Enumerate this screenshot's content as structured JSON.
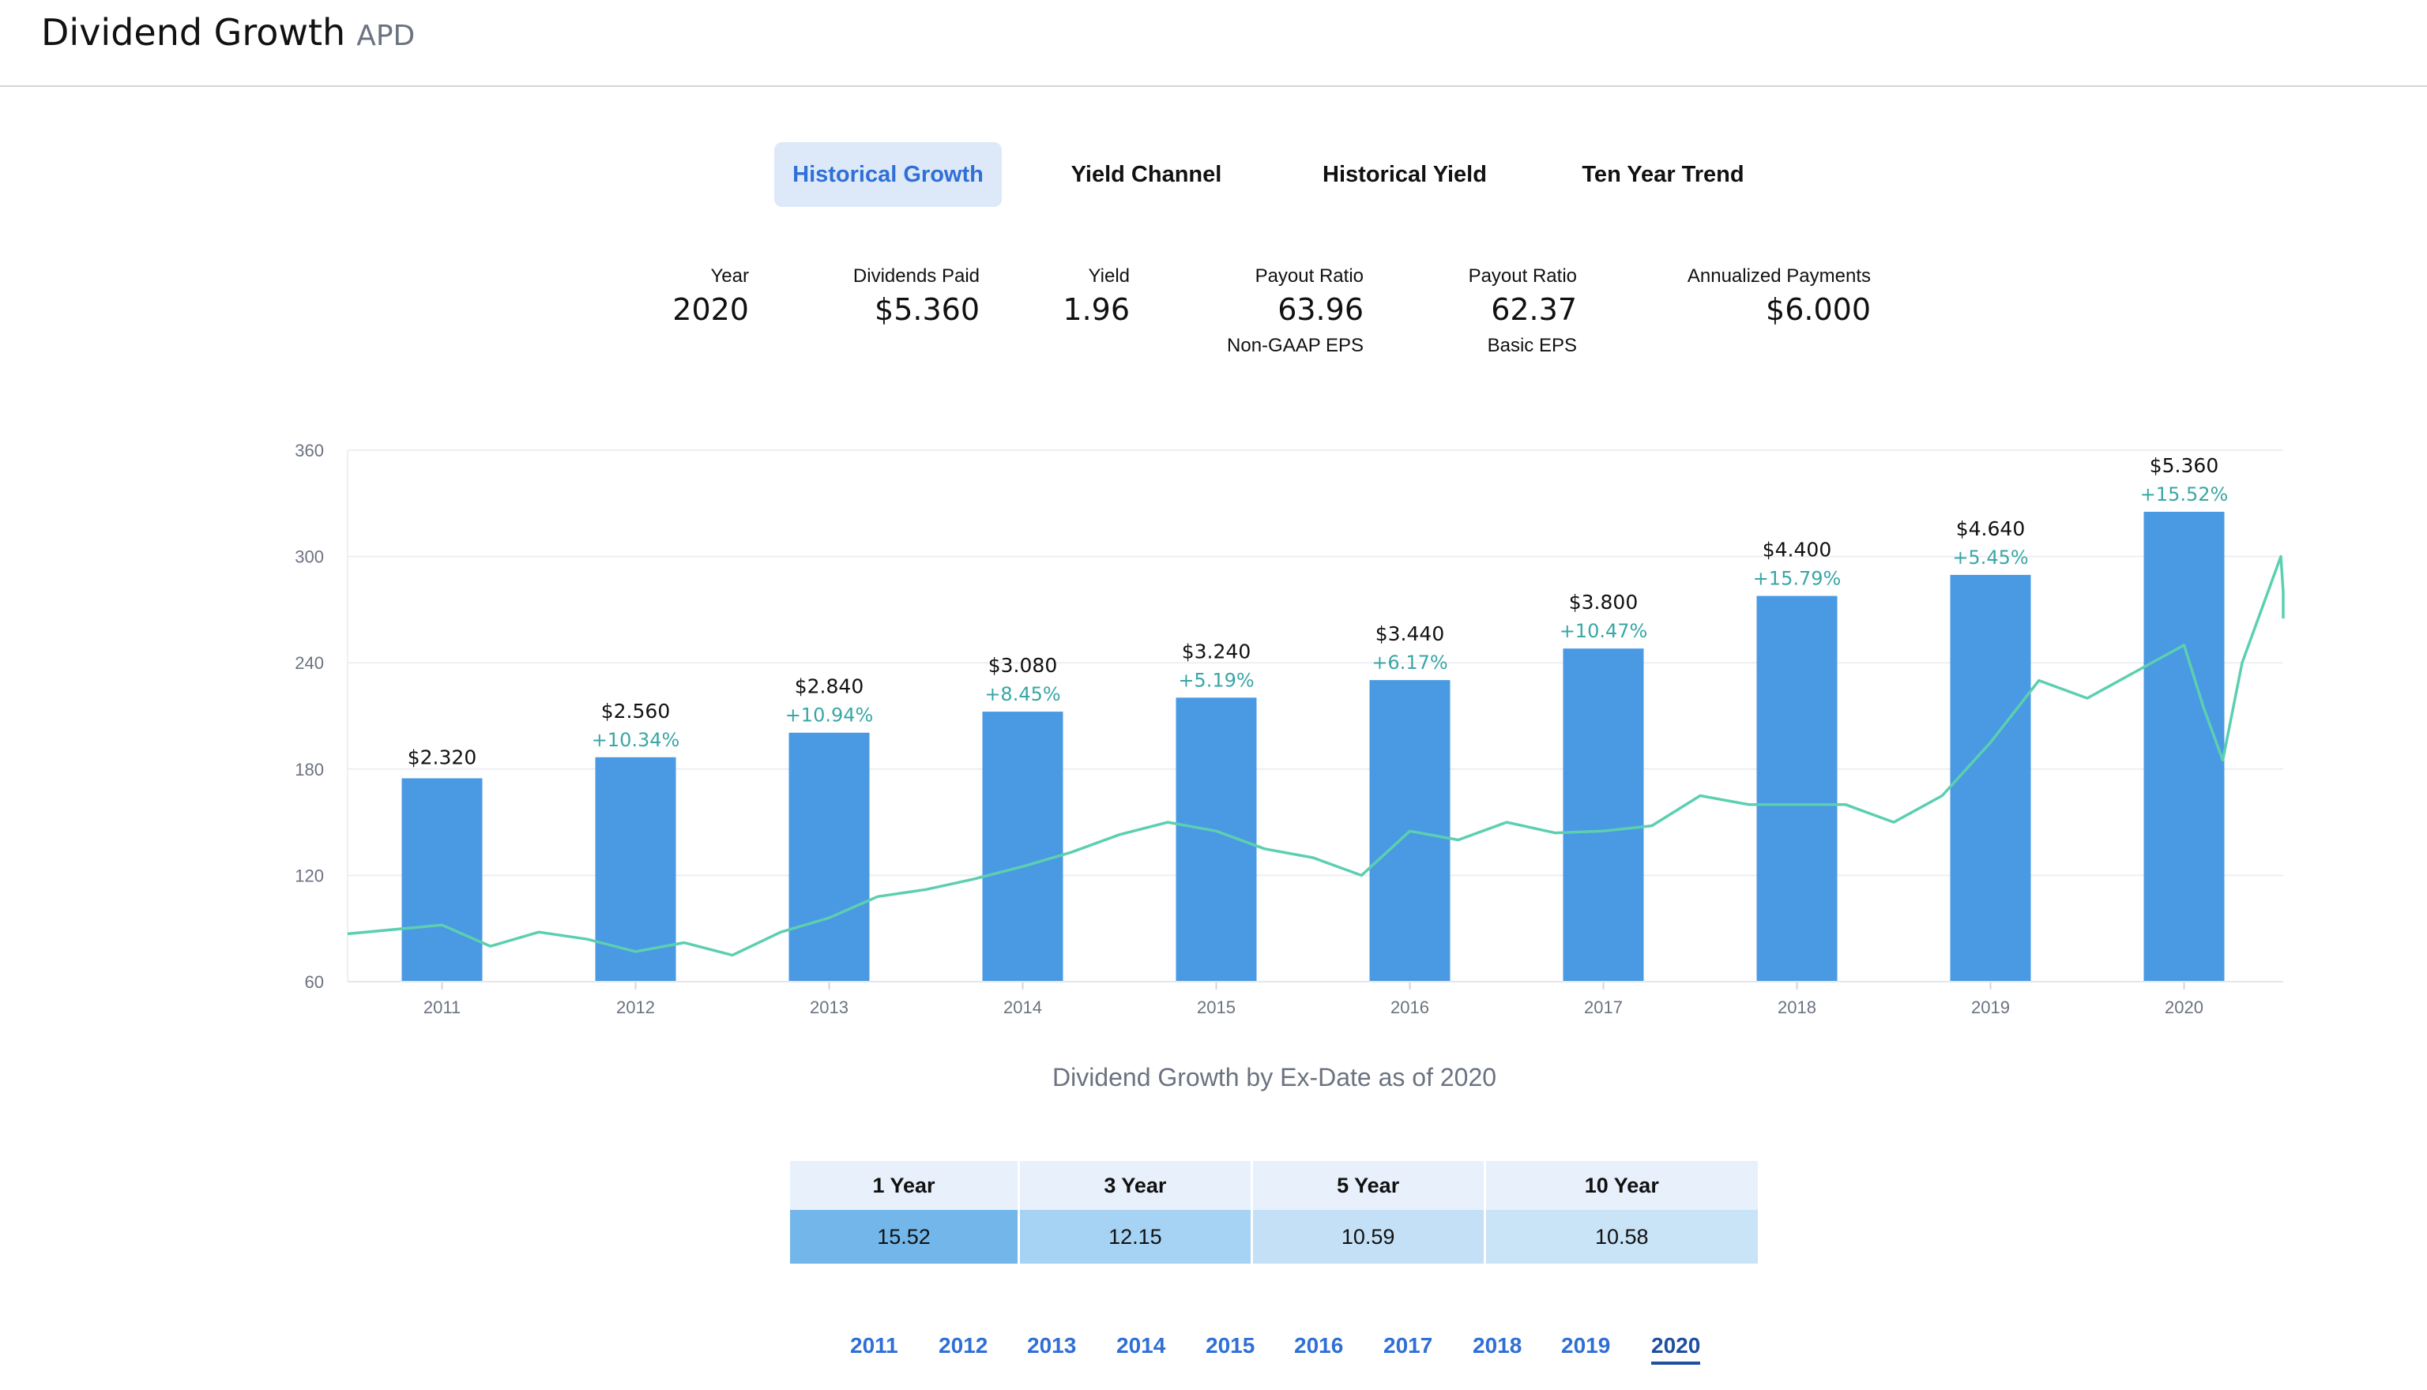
{
  "header": {
    "title": "Dividend Growth",
    "ticker": "APD"
  },
  "tabs": [
    {
      "label": "Historical Growth",
      "active": true
    },
    {
      "label": "Yield Channel",
      "active": false
    },
    {
      "label": "Historical Yield",
      "active": false
    },
    {
      "label": "Ten Year Trend",
      "active": false
    }
  ],
  "stats": {
    "year": {
      "label": "Year",
      "value": "2020"
    },
    "dividends_paid": {
      "label": "Dividends Paid",
      "value": "$5.360"
    },
    "yield": {
      "label": "Yield",
      "value": "1.96"
    },
    "payout_non_gaap": {
      "label": "Payout Ratio",
      "value": "63.96",
      "sub": "Non-GAAP EPS"
    },
    "payout_basic": {
      "label": "Payout Ratio",
      "value": "62.37",
      "sub": "Basic EPS"
    },
    "annualized": {
      "label": "Annualized Payments",
      "value": "$6.000"
    }
  },
  "chart_data": {
    "type": "bar",
    "caption": "Dividend Growth by Ex-Date as of 2020",
    "categories": [
      "2011",
      "2012",
      "2013",
      "2014",
      "2015",
      "2016",
      "2017",
      "2018",
      "2019",
      "2020"
    ],
    "series": [
      {
        "values": [
          2.32,
          2.56,
          2.84,
          3.08,
          3.24,
          3.44,
          3.8,
          4.4,
          4.64,
          5.36
        ],
        "value_labels": [
          "$2.320",
          "$2.560",
          "$2.840",
          "$3.080",
          "$3.240",
          "$3.440",
          "$3.800",
          "$4.400",
          "$4.640",
          "$5.360"
        ],
        "growth_labels": [
          "",
          "+10.34%",
          "+10.94%",
          "+8.45%",
          "+5.19%",
          "+6.17%",
          "+10.47%",
          "+15.79%",
          "+5.45%",
          "+15.52%"
        ]
      },
      {
        "type": "line",
        "x": [
          2010.5,
          2011.0,
          2011.25,
          2011.5,
          2011.75,
          2012.0,
          2012.25,
          2012.5,
          2012.75,
          2013.0,
          2013.25,
          2013.5,
          2013.75,
          2014.0,
          2014.25,
          2014.5,
          2014.75,
          2015.0,
          2015.25,
          2015.5,
          2015.75,
          2016.0,
          2016.25,
          2016.5,
          2016.75,
          2017.0,
          2017.25,
          2017.5,
          2017.75,
          2018.0,
          2018.25,
          2018.5,
          2018.75,
          2019.0,
          2019.25,
          2019.5,
          2019.75,
          2020.0,
          2020.1,
          2020.2,
          2020.3,
          2020.5,
          2020.75,
          2020.9
        ],
        "values": [
          87,
          92,
          80,
          88,
          84,
          77,
          82,
          75,
          88,
          96,
          108,
          112,
          118,
          125,
          133,
          143,
          150,
          145,
          135,
          130,
          120,
          145,
          140,
          150,
          144,
          145,
          148,
          165,
          160,
          160,
          160,
          150,
          165,
          195,
          230,
          220,
          235,
          250,
          215,
          185,
          240,
          300,
          280,
          265
        ]
      }
    ],
    "y_ticks": [
      "60",
      "120",
      "180",
      "240",
      "300",
      "360"
    ],
    "ylim": [
      60,
      360
    ],
    "bar_scale_note": "",
    "colors": {
      "bar": "#4a99e3",
      "line": "#5ccfb0",
      "growth": "#3aa6a6"
    }
  },
  "growth_table": {
    "headers": [
      "1 Year",
      "3 Year",
      "5 Year",
      "10 Year"
    ],
    "values": [
      "15.52",
      "12.15",
      "10.59",
      "10.58"
    ],
    "colors": [
      "#72b6ea",
      "#a6d2f3",
      "#c3e0f7",
      "#c9e3f7"
    ]
  },
  "year_nav": [
    "2011",
    "2012",
    "2013",
    "2014",
    "2015",
    "2016",
    "2017",
    "2018",
    "2019",
    "2020"
  ],
  "year_nav_active": "2020"
}
